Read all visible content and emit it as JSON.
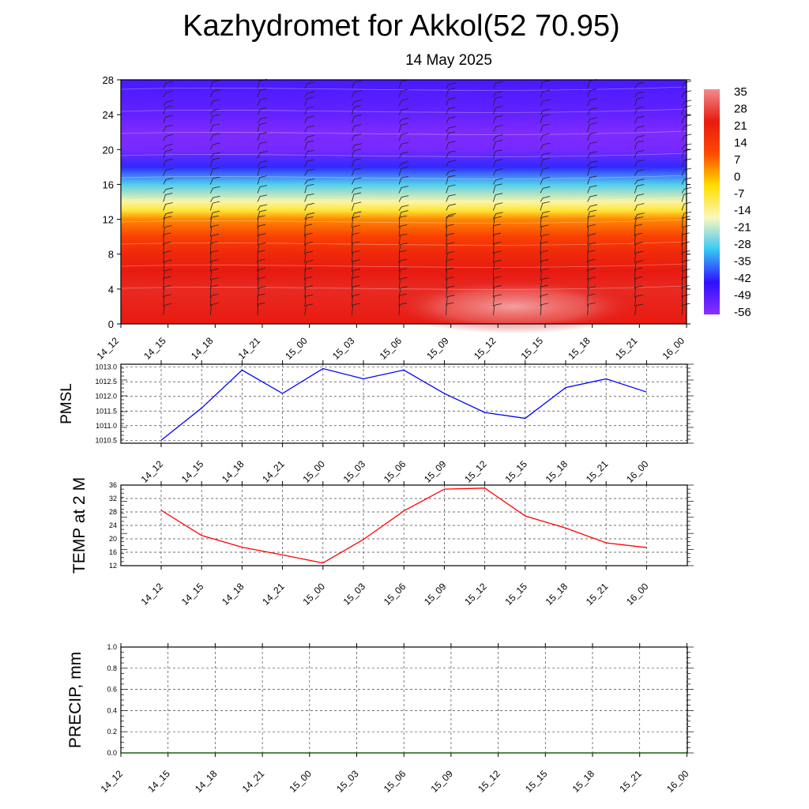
{
  "title": "Kazhydromet for Akkol(52 70.95)",
  "subtitle": "14 May 2025",
  "chart_data": [
    {
      "type": "heatmap",
      "x_categories": [
        "14_12",
        "14_15",
        "14_18",
        "14_21",
        "15_00",
        "15_03",
        "15_06",
        "15_09",
        "15_12",
        "15_15",
        "15_18",
        "15_21",
        "16_00"
      ],
      "y_ticks": [
        0,
        4,
        8,
        12,
        16,
        20,
        24,
        28
      ],
      "ylim": [
        0,
        28
      ],
      "colorbar_labels": [
        35,
        28,
        21,
        14,
        7,
        0,
        -7,
        -14,
        -21,
        -28,
        -35,
        -42,
        -49,
        -56
      ],
      "colorbar_range": [
        -60,
        38
      ],
      "value_by_level": [
        {
          "level": 0,
          "value": 24
        },
        {
          "level": 2,
          "value": 25
        },
        {
          "level": 4,
          "value": 26
        },
        {
          "level": 6,
          "value": 24
        },
        {
          "level": 8,
          "value": 20
        },
        {
          "level": 10,
          "value": 13
        },
        {
          "level": 12,
          "value": 4
        },
        {
          "level": 13,
          "value": -8
        },
        {
          "level": 14,
          "value": -16
        },
        {
          "level": 16,
          "value": -30
        },
        {
          "level": 18,
          "value": -44
        },
        {
          "level": 20,
          "value": -57
        },
        {
          "level": 22,
          "value": -58
        },
        {
          "level": 24,
          "value": -54
        },
        {
          "level": 26,
          "value": -52
        },
        {
          "level": 28,
          "value": -50
        }
      ],
      "colors": [
        "#8a30ff",
        "#2f10ff",
        "#35c7f5",
        "#fbf7bf",
        "#ffde00",
        "#ff4a00",
        "#e81a10",
        "#ef8c8c"
      ],
      "wind_barbs": true
    },
    {
      "type": "line",
      "ylabel": "PMSL",
      "categories": [
        "14_12",
        "14_15",
        "14_18",
        "14_21",
        "15_00",
        "15_03",
        "15_06",
        "15_09",
        "15_12",
        "15_15",
        "15_18",
        "15_21",
        "16_00"
      ],
      "values": [
        1010.5,
        1011.6,
        1012.9,
        1012.1,
        1012.95,
        1012.6,
        1012.9,
        1012.1,
        1011.45,
        1011.25,
        1012.3,
        1012.6,
        1012.15
      ],
      "ylim": [
        1010.4,
        1013.1
      ],
      "y_ticks": [
        "1010.5",
        "1011.0",
        "1011.5",
        "1012.0",
        "1012.5",
        "1013.0"
      ],
      "color": "#0000ff",
      "grid": true
    },
    {
      "type": "line",
      "ylabel": "TEMP at 2 M",
      "categories": [
        "14_12",
        "14_15",
        "14_18",
        "14_21",
        "15_00",
        "15_03",
        "15_06",
        "15_09",
        "15_12",
        "15_15",
        "15_18",
        "15_21",
        "16_00"
      ],
      "values": [
        28.5,
        21,
        17.5,
        15.2,
        12.8,
        19.8,
        28.3,
        34.8,
        35.1,
        26.8,
        23.2,
        18.8,
        17.4
      ],
      "ylim": [
        12,
        36
      ],
      "y_ticks": [
        "12",
        "16",
        "20",
        "24",
        "28",
        "32",
        "36"
      ],
      "color": "#ff0000",
      "grid": true
    },
    {
      "type": "line",
      "ylabel": "PRECIP, mm",
      "categories": [
        "14_12",
        "14_15",
        "14_18",
        "14_21",
        "15_00",
        "15_03",
        "15_06",
        "15_09",
        "15_12",
        "15_15",
        "15_18",
        "15_21",
        "16_00"
      ],
      "values": [
        0,
        0,
        0,
        0,
        0,
        0,
        0,
        0,
        0,
        0,
        0,
        0,
        0
      ],
      "ylim": [
        0,
        1
      ],
      "y_ticks": [
        "0.0",
        "0.2",
        "0.4",
        "0.6",
        "0.8",
        "1.0"
      ],
      "color": "#006400",
      "grid": true
    }
  ]
}
